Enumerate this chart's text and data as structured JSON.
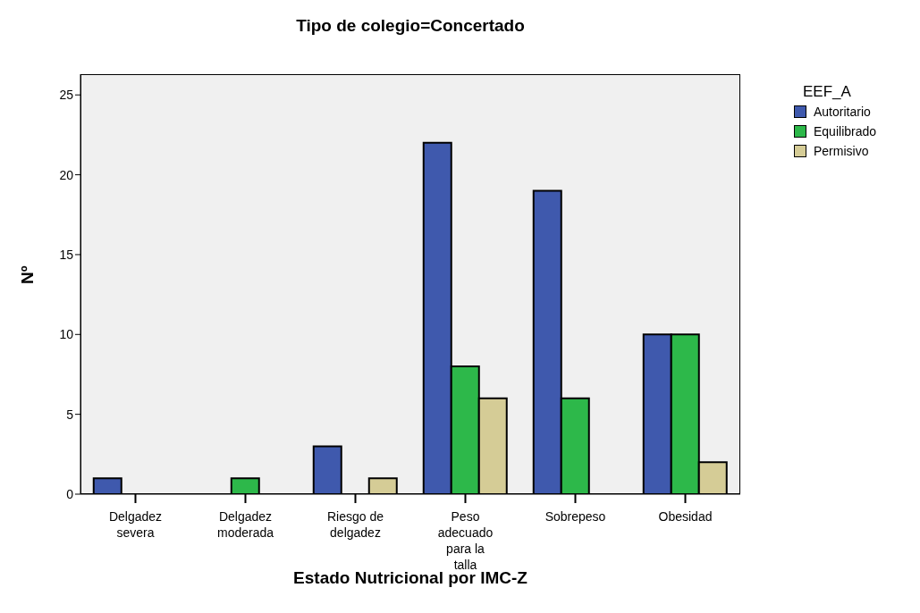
{
  "chart_data": {
    "type": "bar",
    "title": "Tipo de colegio=Concertado",
    "xlabel": "Estado Nutricional por IMC-Z",
    "ylabel": "Nº",
    "legend_title": "EEF_A",
    "categories": [
      "Delgadez severa",
      "Delgadez moderada",
      "Riesgo de delgadez",
      "Peso adecuado para la talla",
      "Sobrepeso",
      "Obesidad"
    ],
    "series": [
      {
        "name": "Autoritario",
        "color": "#3f59ad",
        "values": [
          1,
          null,
          3,
          22,
          19,
          10
        ]
      },
      {
        "name": "Equilibrado",
        "color": "#2db84a",
        "values": [
          null,
          1,
          null,
          8,
          6,
          10
        ]
      },
      {
        "name": "Permisivo",
        "color": "#d5cc96",
        "values": [
          null,
          null,
          1,
          6,
          null,
          2
        ]
      }
    ],
    "ylim": [
      0,
      26.3
    ],
    "yticks": [
      0,
      5,
      10,
      15,
      20,
      25
    ],
    "grid": false,
    "legend": "top right"
  }
}
